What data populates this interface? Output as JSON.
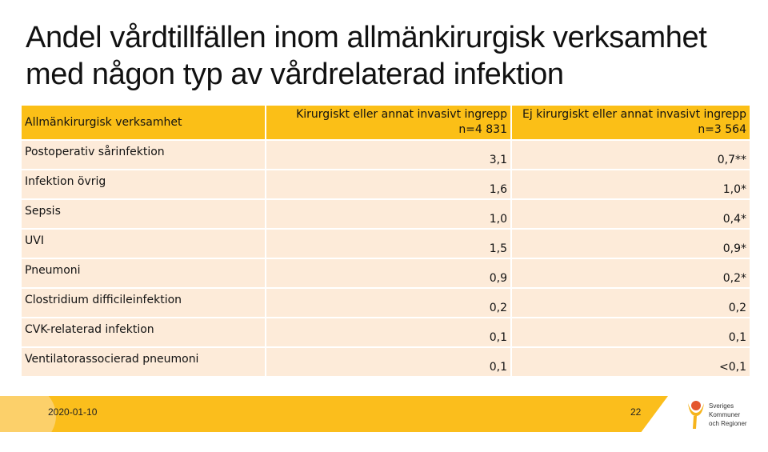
{
  "title": "Andel vårdtillfällen inom allmänkirurgisk verksamhet med någon typ av vårdrelaterad infektion",
  "table": {
    "headers": [
      "Allmänkirurgisk verksamhet",
      "Kirurgiskt eller annat invasivt ingrepp n=4 831",
      "Ej kirurgiskt eller annat invasivt ingrepp n=3 564"
    ],
    "rows": [
      [
        "Postoperativ sårinfektion",
        "3,1",
        "0,7**"
      ],
      [
        "Infektion övrig",
        "1,6",
        "1,0*"
      ],
      [
        "Sepsis",
        "1,0",
        "0,4*"
      ],
      [
        "UVI",
        "1,5",
        "0,9*"
      ],
      [
        "Pneumoni",
        "0,9",
        "0,2*"
      ],
      [
        "Clostridium difficileinfektion",
        "0,2",
        "0,2"
      ],
      [
        "CVK-relaterad infektion",
        "0,1",
        "0,1"
      ],
      [
        "Ventilatorassocierad pneumoni",
        "0,1",
        "<0,1"
      ]
    ]
  },
  "footer": {
    "date": "2020-01-10",
    "page": "22",
    "logo_text": "Sveriges Kommuner och Regioner"
  },
  "colors": {
    "accent": "#fbbf17",
    "row": "#fdebd9"
  }
}
